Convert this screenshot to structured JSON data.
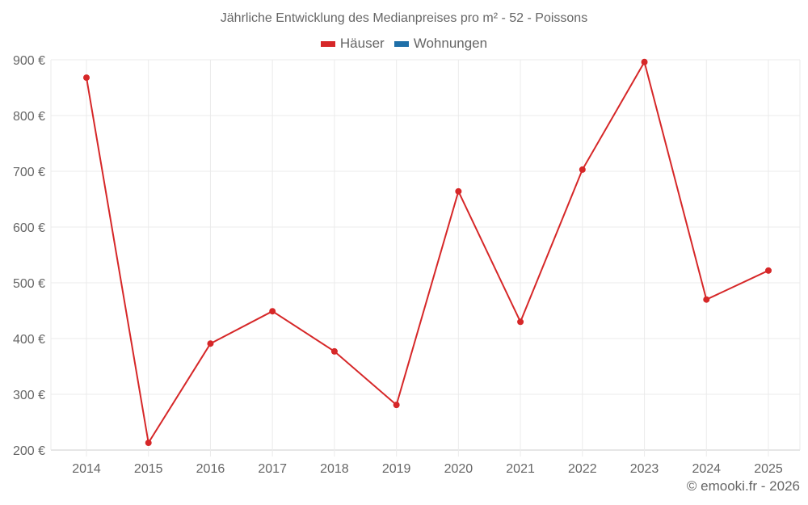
{
  "title": "Jährliche Entwicklung des Medianpreises pro m² - 52 - Poissons",
  "legend": [
    {
      "label": "Häuser",
      "color": "#d62728"
    },
    {
      "label": "Wohnungen",
      "color": "#1f6fa8"
    }
  ],
  "footer": "© emooki.fr - 2026",
  "chart_data": {
    "type": "line",
    "title": "Jährliche Entwicklung des Medianpreises pro m² - 52 - Poissons",
    "xlabel": "",
    "ylabel": "",
    "categories": [
      "2014",
      "2015",
      "2016",
      "2017",
      "2018",
      "2019",
      "2020",
      "2021",
      "2022",
      "2023",
      "2024",
      "2025"
    ],
    "series": [
      {
        "name": "Häuser",
        "color": "#d62728",
        "values": [
          868,
          213,
          391,
          449,
          377,
          281,
          664,
          430,
          703,
          896,
          470,
          522
        ]
      },
      {
        "name": "Wohnungen",
        "color": "#1f6fa8",
        "values": []
      }
    ],
    "yticks": [
      200,
      300,
      400,
      500,
      600,
      700,
      800,
      900
    ],
    "ytick_labels": [
      "200 €",
      "300 €",
      "400 €",
      "500 €",
      "600 €",
      "700 €",
      "800 €",
      "900 €"
    ],
    "ylim": [
      200,
      900
    ],
    "grid": true,
    "legend_position": "top"
  }
}
